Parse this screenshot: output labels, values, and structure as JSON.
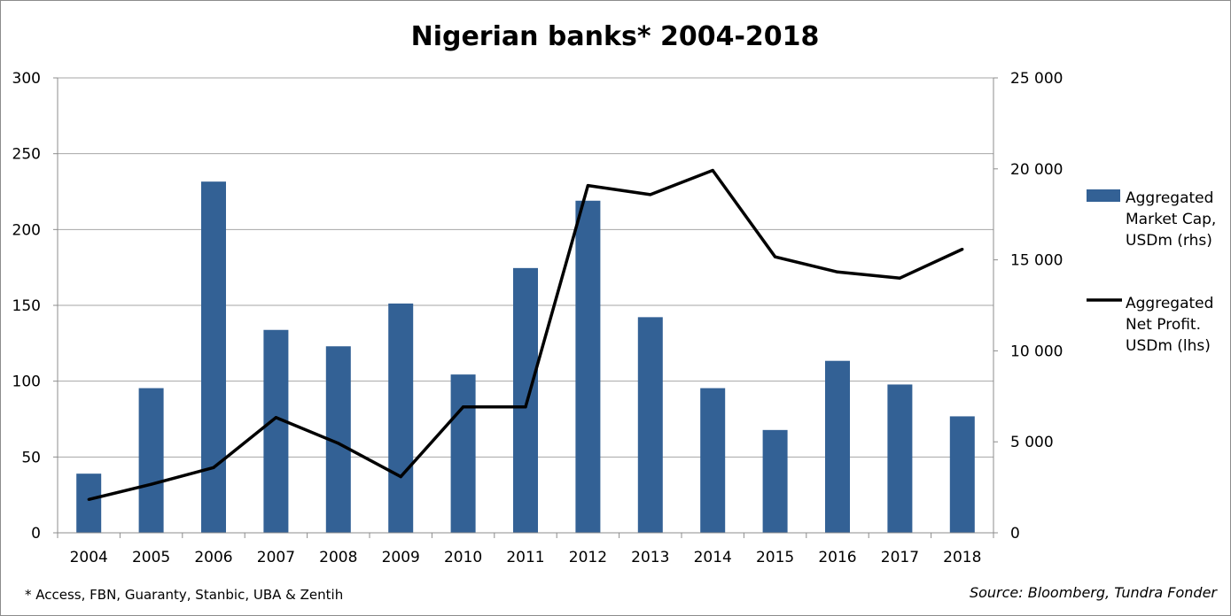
{
  "chart_data": {
    "type": "bar",
    "title": "Nigerian banks* 2004-2018",
    "categories": [
      "2004",
      "2005",
      "2006",
      "2007",
      "2008",
      "2009",
      "2010",
      "2011",
      "2012",
      "2013",
      "2014",
      "2015",
      "2016",
      "2017",
      "2018"
    ],
    "series": [
      {
        "name": "Aggregated Market Cap, USDm (rhs)",
        "type": "bar",
        "axis": "right",
        "color": "#336195",
        "values": [
          3250,
          7950,
          19300,
          11150,
          10250,
          12600,
          8700,
          14550,
          18250,
          11850,
          7950,
          5650,
          9450,
          8150,
          6400
        ]
      },
      {
        "name": "Aggregated Net Profit. USDm (lhs)",
        "type": "line",
        "axis": "left",
        "color": "#000000",
        "values": [
          22,
          32,
          43,
          76,
          59,
          37,
          83,
          83,
          229,
          223,
          239,
          182,
          172,
          168,
          187
        ]
      }
    ],
    "left_axis": {
      "min": 0,
      "max": 300,
      "ticks": [
        "0",
        "50",
        "100",
        "150",
        "200",
        "250",
        "300"
      ]
    },
    "right_axis": {
      "min": 0,
      "max": 25000,
      "ticks": [
        "0",
        "5 000",
        "10 000",
        "15 000",
        "20 000",
        "25 000"
      ]
    },
    "grid": true,
    "legend_position": "right",
    "legend": [
      {
        "lines": [
          "Aggregated",
          "Market Cap,",
          "USDm (rhs)"
        ],
        "symbol": "bar",
        "color": "#336195"
      },
      {
        "lines": [
          "Aggregated",
          "Net Profit.",
          "USDm (lhs)"
        ],
        "symbol": "line",
        "color": "#000000"
      }
    ],
    "footnote": "* Access, FBN, Guaranty, Stanbic, UBA & Zentih",
    "source": "Source: Bloomberg, Tundra Fonder"
  }
}
